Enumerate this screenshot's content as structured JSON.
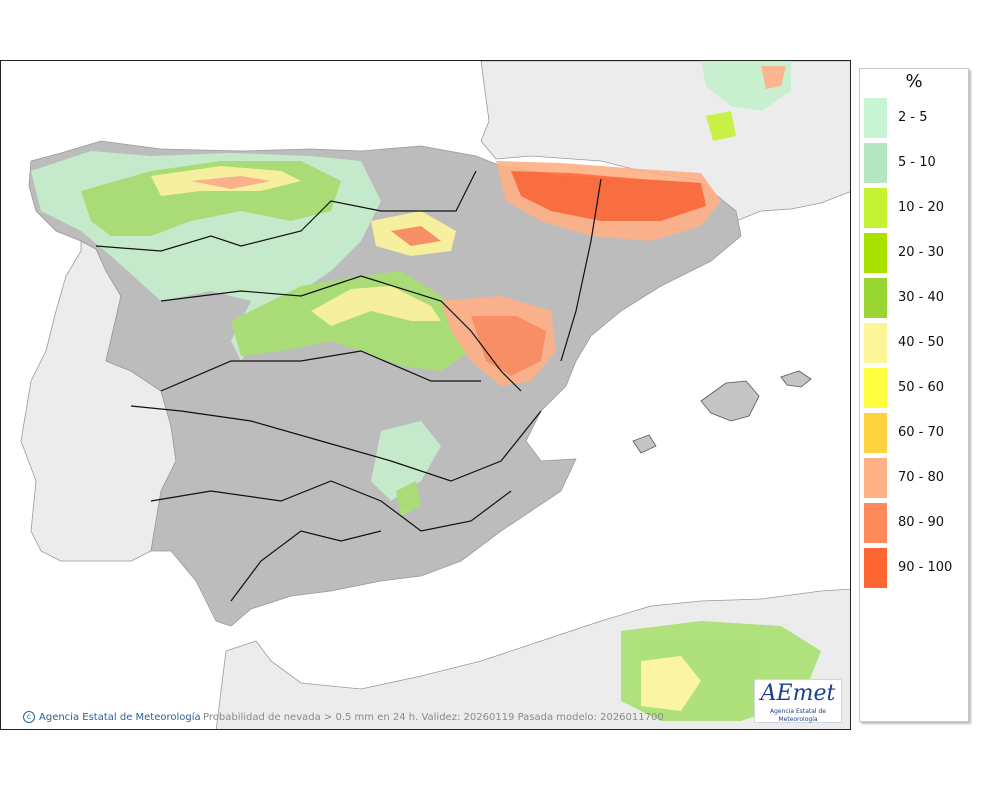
{
  "map": {
    "credit": "Agencia Estatal de Meteorología",
    "caption": "Probabilidad de nevada > 0.5 mm en 24 h. Validez: 20260119 Pasada modelo: 2026011700",
    "logo_text": "AEmet",
    "logo_subtitle": "Agencia Estatal de Meteorología"
  },
  "legend": {
    "title": "%",
    "items": [
      {
        "label": "2 - 5",
        "color": "#c8f5d4"
      },
      {
        "label": "5 - 10",
        "color": "#b4e6c2"
      },
      {
        "label": "10 - 20",
        "color": "#c5f233"
      },
      {
        "label": "20 - 30",
        "color": "#a8e000"
      },
      {
        "label": "30 - 40",
        "color": "#99d633"
      },
      {
        "label": "40 - 50",
        "color": "#fdf59a"
      },
      {
        "label": "50 - 60",
        "color": "#ffff40"
      },
      {
        "label": "60 - 70",
        "color": "#ffd240"
      },
      {
        "label": "70 - 80",
        "color": "#ffb085"
      },
      {
        "label": "80 - 90",
        "color": "#ff8a5c"
      },
      {
        "label": "90 - 100",
        "color": "#ff6633"
      }
    ]
  }
}
